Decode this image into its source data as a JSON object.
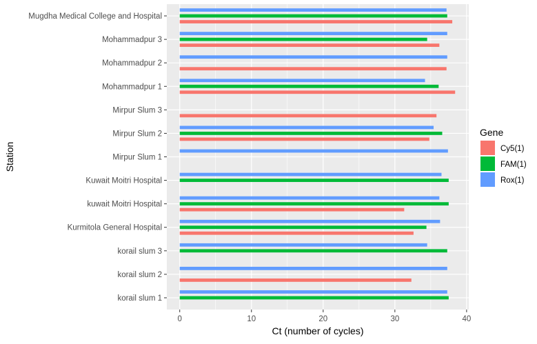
{
  "chart_data": {
    "type": "bar",
    "orientation": "horizontal",
    "xlabel": "Ct (number of cycles)",
    "ylabel": "Station",
    "xlim": [
      -1.8,
      40.3
    ],
    "xticks": [
      0,
      10,
      20,
      30,
      40
    ],
    "grid": true,
    "legend": {
      "title": "Gene",
      "position": "right"
    },
    "categories": [
      "korail slum 1",
      "korail slum 2",
      "korail slum 3",
      "Kurmitola General Hospital",
      "kuwait Moitri Hospital",
      "Kuwait Moitri Hospital",
      "Mirpur Slum 1",
      "Mirpur Slum 2",
      "Mirpur Slum 3",
      "Mohammadpur 1",
      "Mohammadpur 2",
      "Mohammadpur 3",
      "Mugdha Medical College and Hospital"
    ],
    "series": [
      {
        "name": "Cy5(1)",
        "color": "#F8766D",
        "values": [
          null,
          32.3,
          null,
          32.6,
          31.3,
          null,
          null,
          34.8,
          35.8,
          38.4,
          37.2,
          36.2,
          38.0
        ]
      },
      {
        "name": "FAM(1)",
        "color": "#00BA38",
        "values": [
          37.5,
          null,
          37.3,
          34.4,
          37.5,
          37.5,
          null,
          36.6,
          null,
          36.1,
          null,
          34.5,
          37.3
        ]
      },
      {
        "name": "Rox(1)",
        "color": "#619CFF",
        "values": [
          37.3,
          37.3,
          34.5,
          36.3,
          36.2,
          36.5,
          37.4,
          35.4,
          null,
          34.2,
          37.3,
          37.3,
          37.2
        ]
      }
    ]
  }
}
